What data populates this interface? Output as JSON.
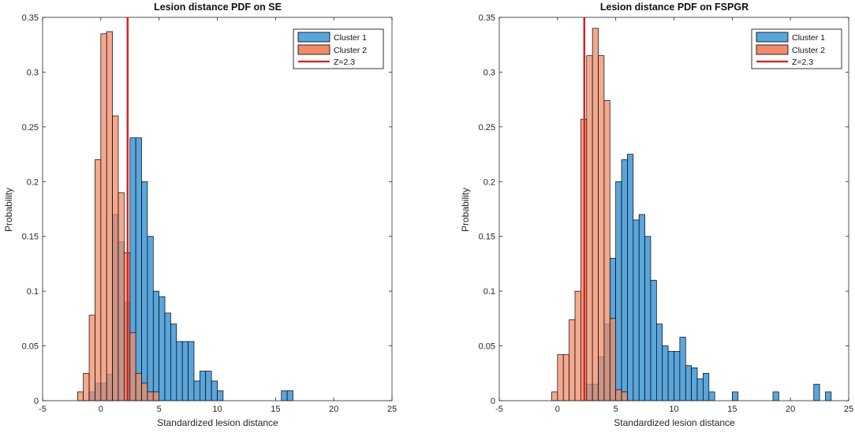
{
  "chart_data": [
    {
      "type": "bar",
      "title": "Lesion distance PDF on SE",
      "xlabel": "Standardized lesion distance",
      "ylabel": "Probability",
      "xlim": [
        -5,
        25
      ],
      "ylim": [
        0,
        0.35
      ],
      "xticks": [
        -5,
        0,
        5,
        10,
        15,
        20,
        25
      ],
      "yticks": [
        0,
        0.05,
        0.1,
        0.15,
        0.2,
        0.25,
        0.3,
        0.35
      ],
      "xtick_labels": [
        "-5",
        "0",
        "5",
        "10",
        "15",
        "20",
        "25"
      ],
      "ytick_labels": [
        "0",
        "0.05",
        "0.1",
        "0.15",
        "0.2",
        "0.25",
        "0.3",
        "0.35"
      ],
      "legend_position": "top-right",
      "series": [
        {
          "name": "Cluster 1",
          "color": "#5aa6dc",
          "bin_width": 0.5,
          "bin_starts": [
            -1,
            -0.5,
            0,
            0.5,
            1,
            1.5,
            2,
            2.5,
            3,
            3.5,
            4,
            4.5,
            5,
            5.5,
            6,
            6.5,
            7,
            7.5,
            8,
            8.5,
            9,
            9.5,
            10,
            15.5,
            16
          ],
          "values": [
            0.008,
            0.016,
            0.016,
            0.024,
            0.17,
            0.145,
            0.09,
            0.24,
            0.24,
            0.2,
            0.15,
            0.1,
            0.095,
            0.08,
            0.07,
            0.054,
            0.054,
            0.054,
            0.018,
            0.027,
            0.027,
            0.018,
            0.009,
            0.009,
            0.009
          ]
        },
        {
          "name": "Cluster 2",
          "color": "#f08c6a",
          "bin_width": 0.5,
          "bin_starts": [
            -2,
            -1.5,
            -1,
            -0.5,
            0,
            0.5,
            1,
            1.5,
            2,
            2.5,
            3,
            3.5,
            4,
            4.5
          ],
          "values": [
            0.008,
            0.025,
            0.078,
            0.22,
            0.335,
            0.337,
            0.26,
            0.19,
            0.135,
            0.062,
            0.025,
            0.016,
            0.008,
            0.008
          ]
        }
      ],
      "reference_line": {
        "name": "Z=2.3",
        "x": 2.3,
        "color": "#e01b1b"
      }
    },
    {
      "type": "bar",
      "title": "Lesion distance PDF on FSPGR",
      "xlabel": "Standardized lesion distance",
      "ylabel": "Probability",
      "xlim": [
        -5,
        25
      ],
      "ylim": [
        0,
        0.35
      ],
      "xticks": [
        -5,
        0,
        5,
        10,
        15,
        20,
        25
      ],
      "yticks": [
        0,
        0.05,
        0.1,
        0.15,
        0.2,
        0.25,
        0.3,
        0.35
      ],
      "xtick_labels": [
        "-5",
        "0",
        "5",
        "10",
        "15",
        "20",
        "25"
      ],
      "ytick_labels": [
        "0",
        "0.05",
        "0.1",
        "0.15",
        "0.2",
        "0.25",
        "0.3",
        "0.35"
      ],
      "legend_position": "top-right",
      "series": [
        {
          "name": "Cluster 1",
          "color": "#5aa6dc",
          "bin_width": 0.5,
          "bin_starts": [
            2.5,
            3,
            3.5,
            4,
            4.5,
            5,
            5.5,
            6,
            6.5,
            7,
            7.5,
            8,
            8.5,
            9,
            9.5,
            10,
            10.5,
            11,
            11.5,
            12,
            12.5,
            13,
            15,
            18.5,
            22,
            23
          ],
          "values": [
            0.015,
            0.015,
            0.04,
            0.07,
            0.13,
            0.2,
            0.22,
            0.225,
            0.165,
            0.17,
            0.15,
            0.11,
            0.07,
            0.05,
            0.045,
            0.045,
            0.058,
            0.032,
            0.03,
            0.02,
            0.025,
            0.008,
            0.008,
            0.008,
            0.015,
            0.008
          ]
        },
        {
          "name": "Cluster 2",
          "color": "#f08c6a",
          "bin_width": 0.5,
          "bin_starts": [
            -0.5,
            0,
            0.5,
            1,
            1.5,
            2,
            2.5,
            3,
            3.5,
            4,
            4.5,
            5,
            5.5
          ],
          "values": [
            0.008,
            0.042,
            0.042,
            0.074,
            0.1,
            0.257,
            0.315,
            0.34,
            0.315,
            0.274,
            0.075,
            0.01,
            0.008
          ]
        }
      ],
      "reference_line": {
        "name": "Z=2.3",
        "x": 2.3,
        "color": "#e01b1b"
      }
    }
  ]
}
